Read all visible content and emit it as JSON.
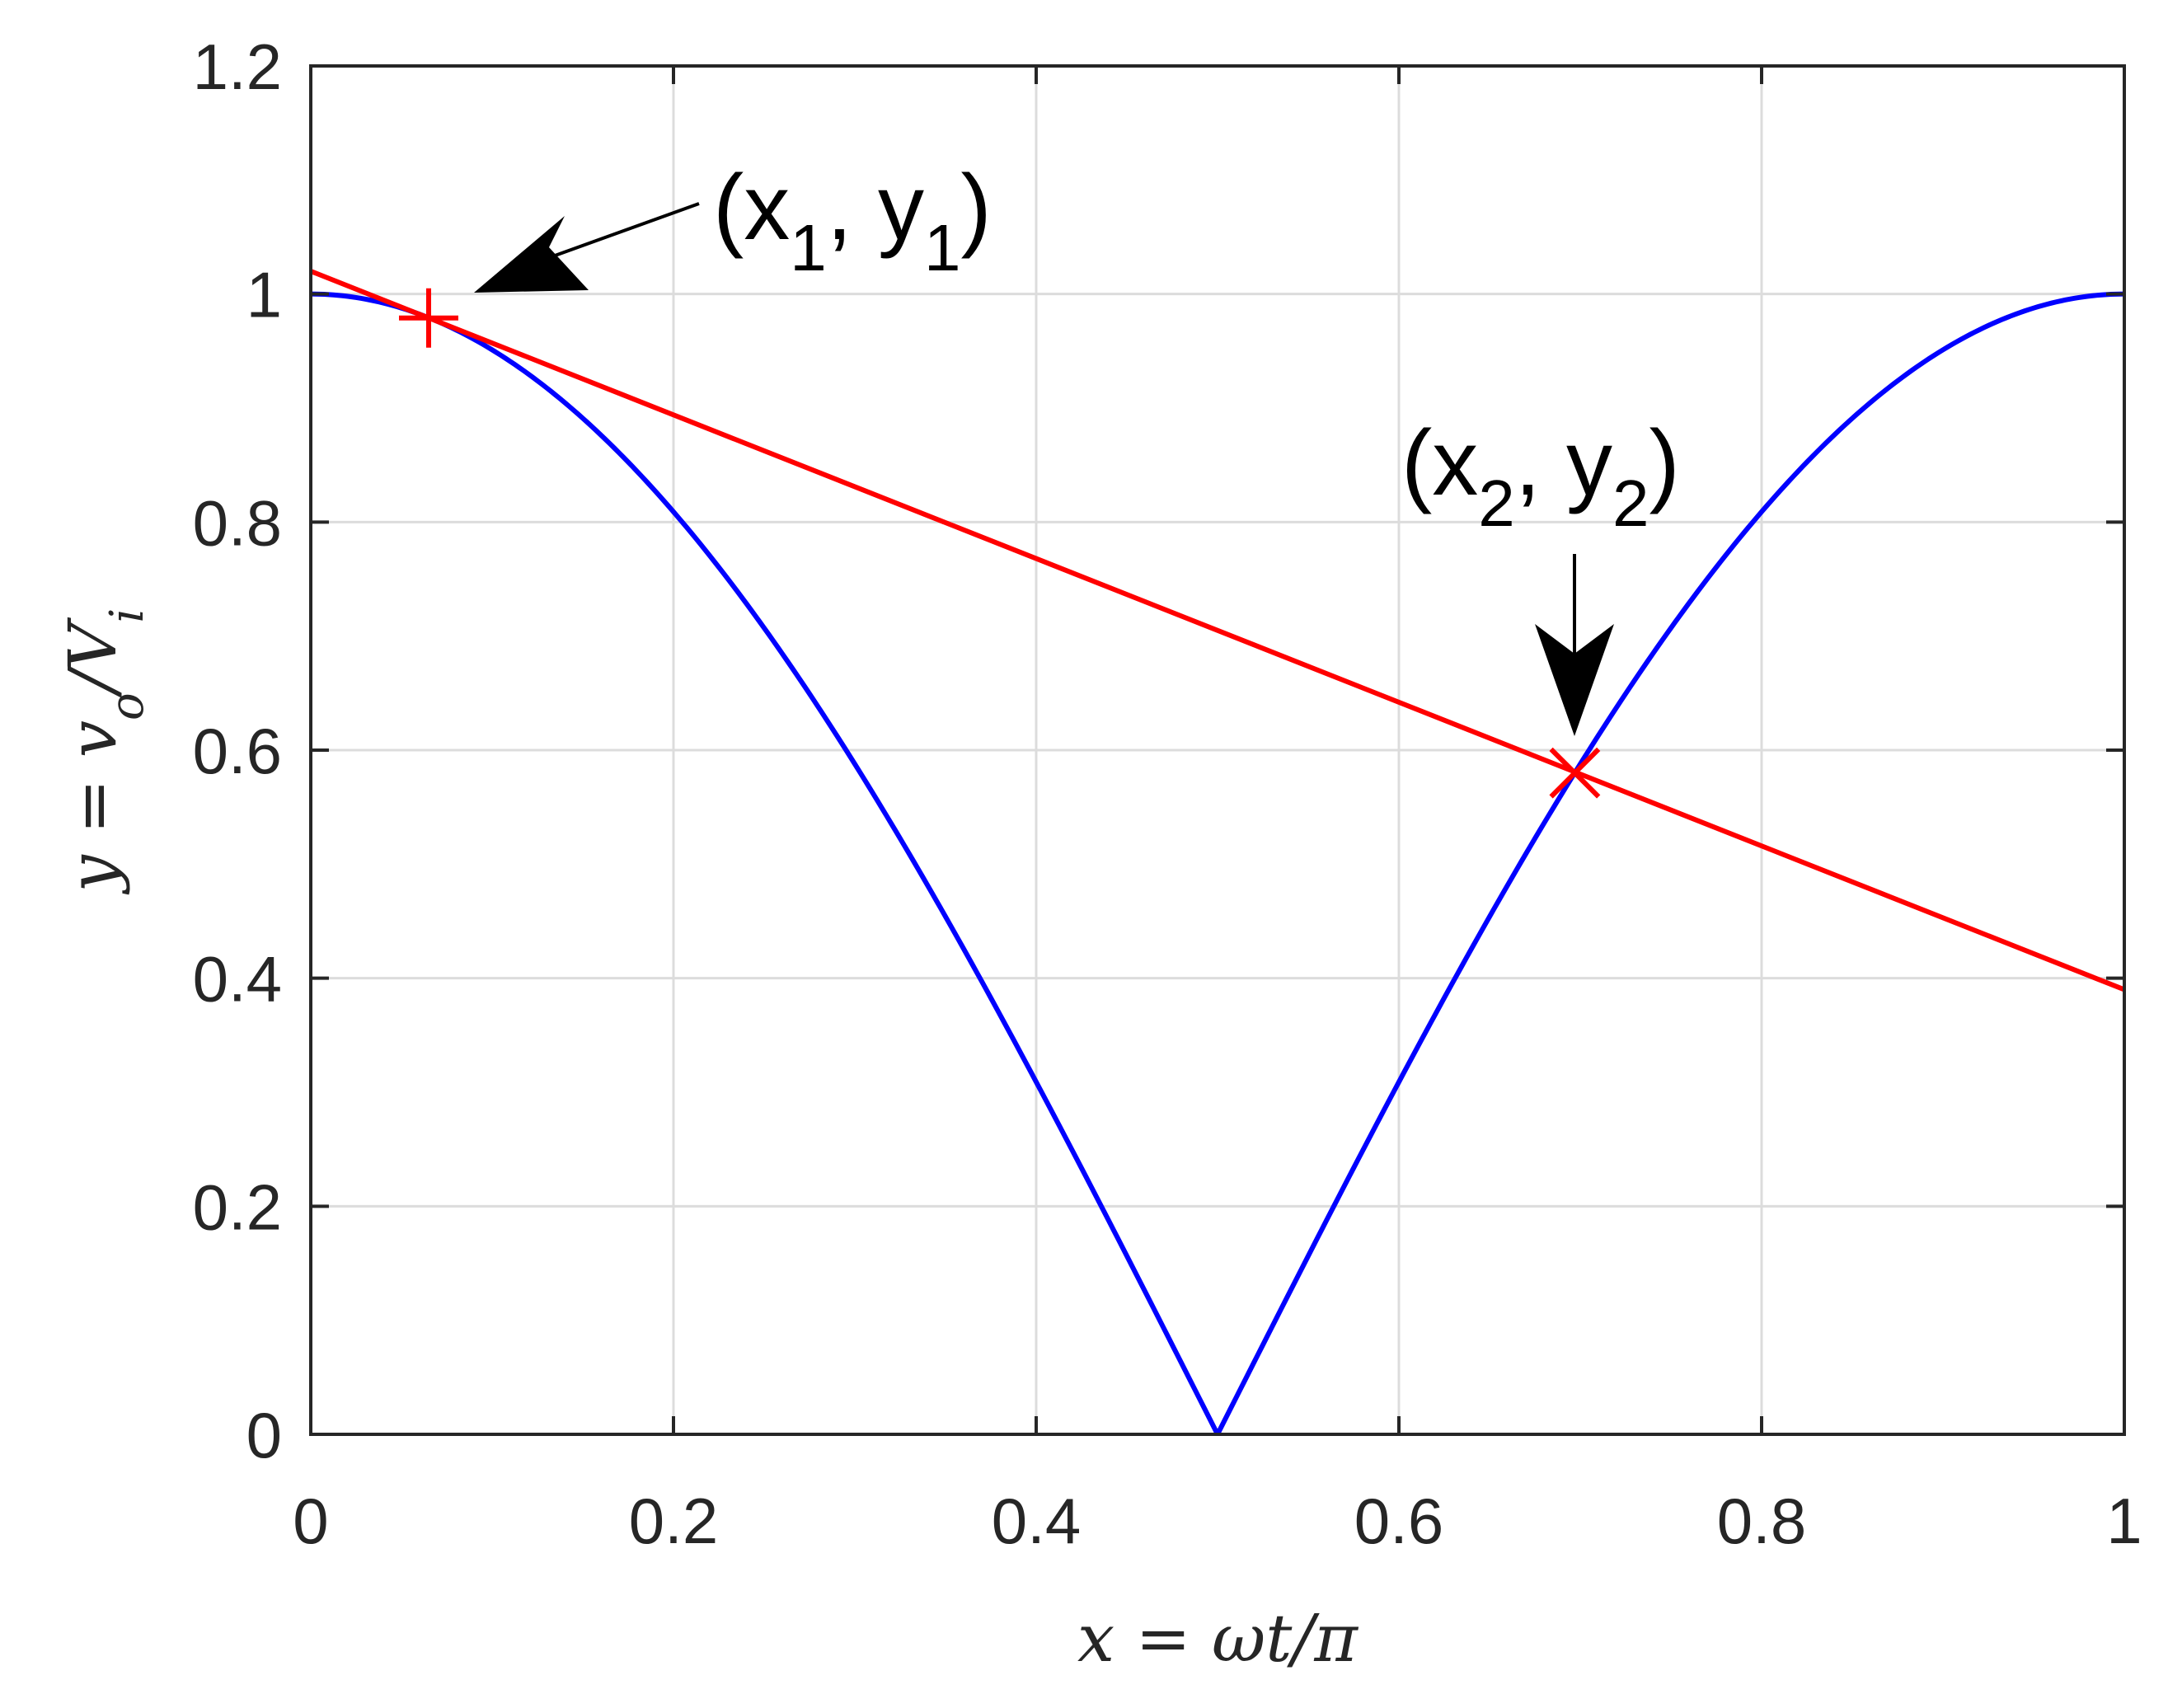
{
  "chart_data": {
    "type": "line",
    "xlabel": "x = ωt/π",
    "ylabel": "y = vo/Vi",
    "xlim": [
      0,
      1
    ],
    "ylim": [
      0,
      1.2
    ],
    "grid": true,
    "x_ticks": [
      "0",
      "0.2",
      "0.4",
      "0.6",
      "0.8",
      "1"
    ],
    "y_ticks": [
      "0",
      "0.2",
      "0.4",
      "0.6",
      "0.8",
      "1",
      "1.2"
    ],
    "series": [
      {
        "color": "#0000ff",
        "function": "|cos(πx)|",
        "x": [
          0,
          0.05,
          0.1,
          0.15,
          0.2,
          0.25,
          0.3,
          0.35,
          0.4,
          0.45,
          0.5,
          0.55,
          0.6,
          0.65,
          0.7,
          0.75,
          0.8,
          0.85,
          0.9,
          0.95,
          1
        ],
        "y": [
          1,
          0.988,
          0.951,
          0.891,
          0.809,
          0.707,
          0.588,
          0.454,
          0.309,
          0.156,
          0,
          0.156,
          0.309,
          0.454,
          0.588,
          0.707,
          0.809,
          0.891,
          0.951,
          0.988,
          1
        ]
      },
      {
        "color": "#ff0000",
        "x": [
          0,
          1
        ],
        "y": [
          1.02,
          0.39
        ]
      }
    ],
    "markers": [
      {
        "marker": "+",
        "x": 0.065,
        "y": 0.979,
        "color": "#ff0000"
      },
      {
        "marker": "x",
        "x": 0.697,
        "y": 0.58,
        "color": "#ff0000"
      }
    ],
    "annotations": [
      {
        "label": "x",
        "sub": "1",
        "label2": "y",
        "sub2": "1",
        "points_to": [
          0.065,
          0.979
        ]
      },
      {
        "label": "x",
        "sub": "2",
        "label2": "y",
        "sub2": "2",
        "points_to": [
          0.697,
          0.58
        ]
      }
    ]
  }
}
